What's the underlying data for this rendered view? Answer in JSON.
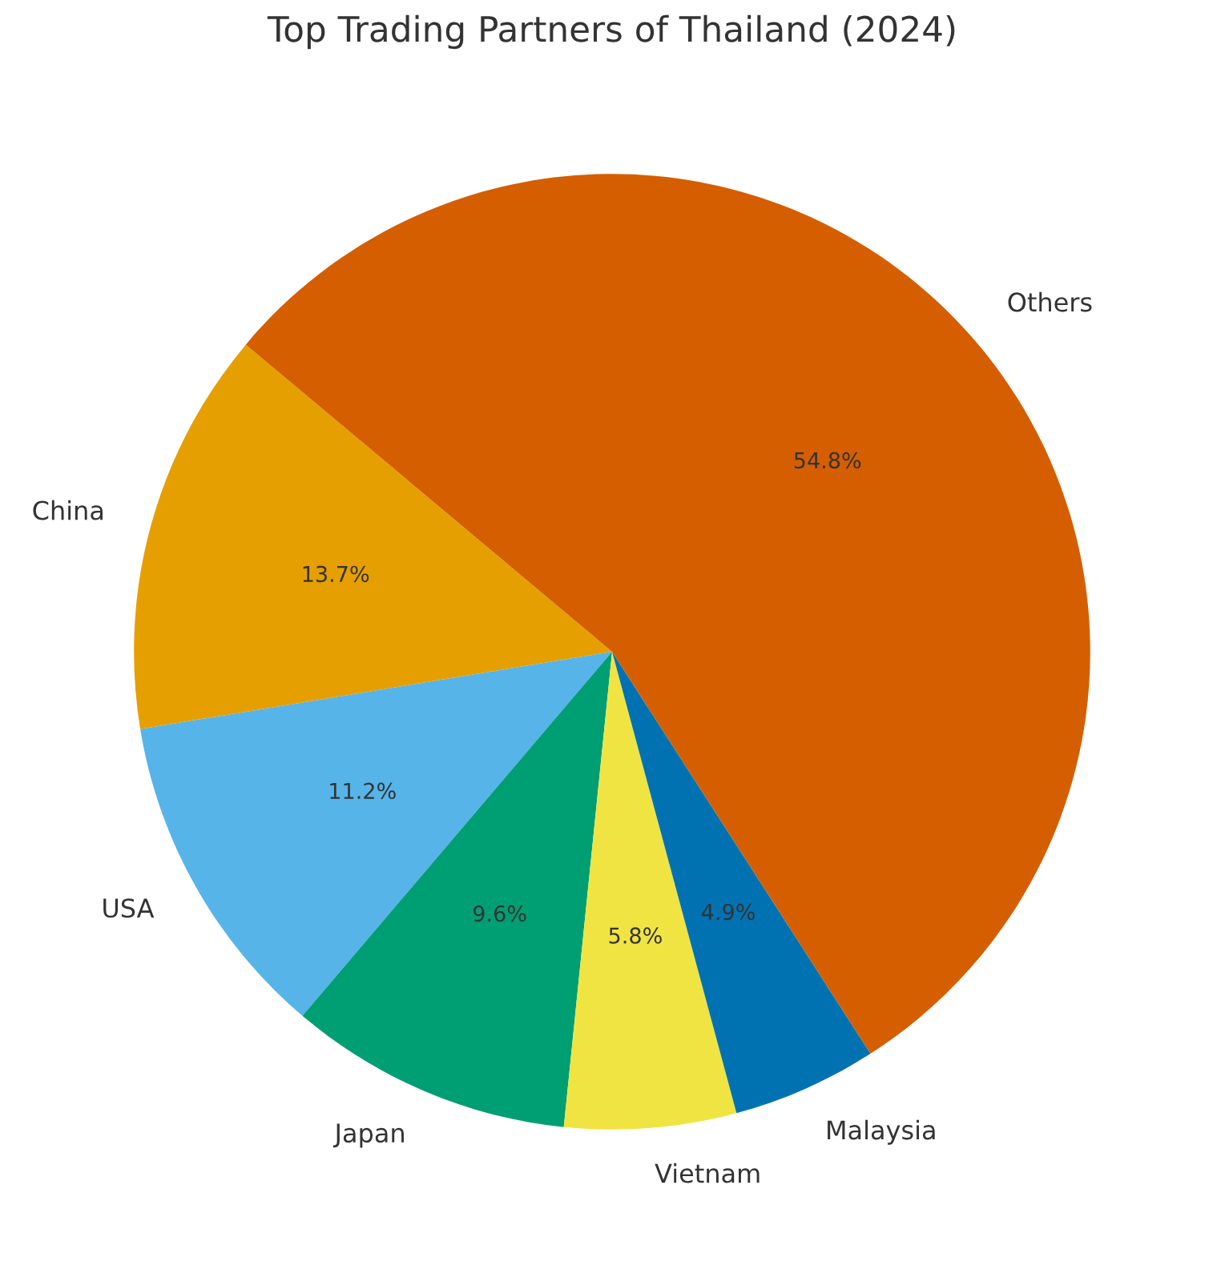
{
  "chart_data": {
    "type": "pie",
    "title": "Top Trading Partners of Thailand (2024)",
    "categories": [
      "China",
      "USA",
      "Japan",
      "Vietnam",
      "Malaysia",
      "Others"
    ],
    "values": [
      13.7,
      11.2,
      9.6,
      5.8,
      4.9,
      54.8
    ],
    "colors": [
      "#e69f00",
      "#56b4e9",
      "#009e73",
      "#f0e442",
      "#0072b2",
      "#d55e00"
    ],
    "value_labels": [
      "13.7%",
      "11.2%",
      "9.6%",
      "5.8%",
      "4.9%",
      "54.8%"
    ]
  }
}
